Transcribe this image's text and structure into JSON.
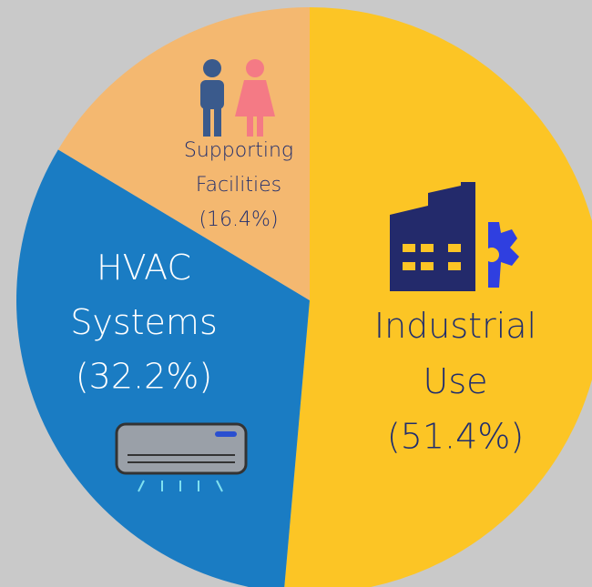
{
  "chart_data": {
    "type": "pie",
    "categories": [
      "Industrial Use",
      "HVAC Systems",
      "Supporting Facilities"
    ],
    "values": [
      51.4,
      32.2,
      16.4
    ],
    "value_labels": [
      "(51.4%)",
      "(32.2%)",
      "(16.4%)"
    ],
    "colors": [
      "#fcc525",
      "#1a7cc3",
      "#f4b870"
    ]
  }
}
